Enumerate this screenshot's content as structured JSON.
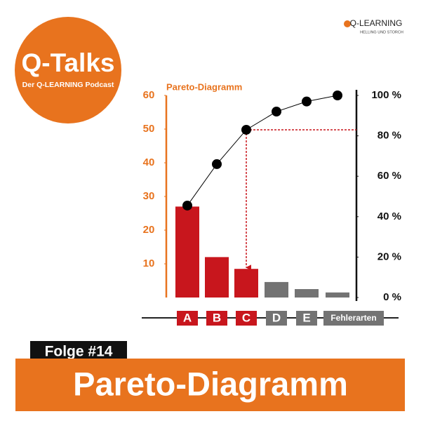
{
  "brand": {
    "circle_title": "Q-Talks",
    "circle_subtitle": "Der Q-LEARNING Podcast",
    "logo": "Q-LEARNING",
    "logo_sub": "HELLING UND STORCH"
  },
  "episode": "Folge #14",
  "banner": "Pareto-Diagramm",
  "chart_data": {
    "type": "pareto",
    "title": "Pareto-Diagramm",
    "categories": [
      "A",
      "B",
      "C",
      "D",
      "E",
      "Fehlerarten"
    ],
    "series": [
      {
        "type": "bar",
        "colors": [
          "#c8161d",
          "#c8161d",
          "#c8161d",
          "#737373",
          "#737373",
          "#737373"
        ],
        "values": [
          27,
          12,
          8.5,
          4.6,
          2.5,
          1.5
        ]
      },
      {
        "type": "line",
        "axis": "y2",
        "color": "#000000",
        "values": [
          45.5,
          66,
          83,
          92,
          97,
          100
        ]
      }
    ],
    "ylim": [
      0,
      60
    ],
    "yticks": [
      10,
      20,
      30,
      40,
      50,
      60
    ],
    "y_color": "#e8731e",
    "y2lim": [
      0,
      100
    ],
    "y2ticks": [
      {
        "value": 0,
        "label": "0 %"
      },
      {
        "value": 20,
        "label": "20 %"
      },
      {
        "value": 40,
        "label": "40 %"
      },
      {
        "value": 60,
        "label": "60 %"
      },
      {
        "value": 80,
        "label": "80 %"
      },
      {
        "value": 100,
        "label": "100 %"
      }
    ]
  }
}
